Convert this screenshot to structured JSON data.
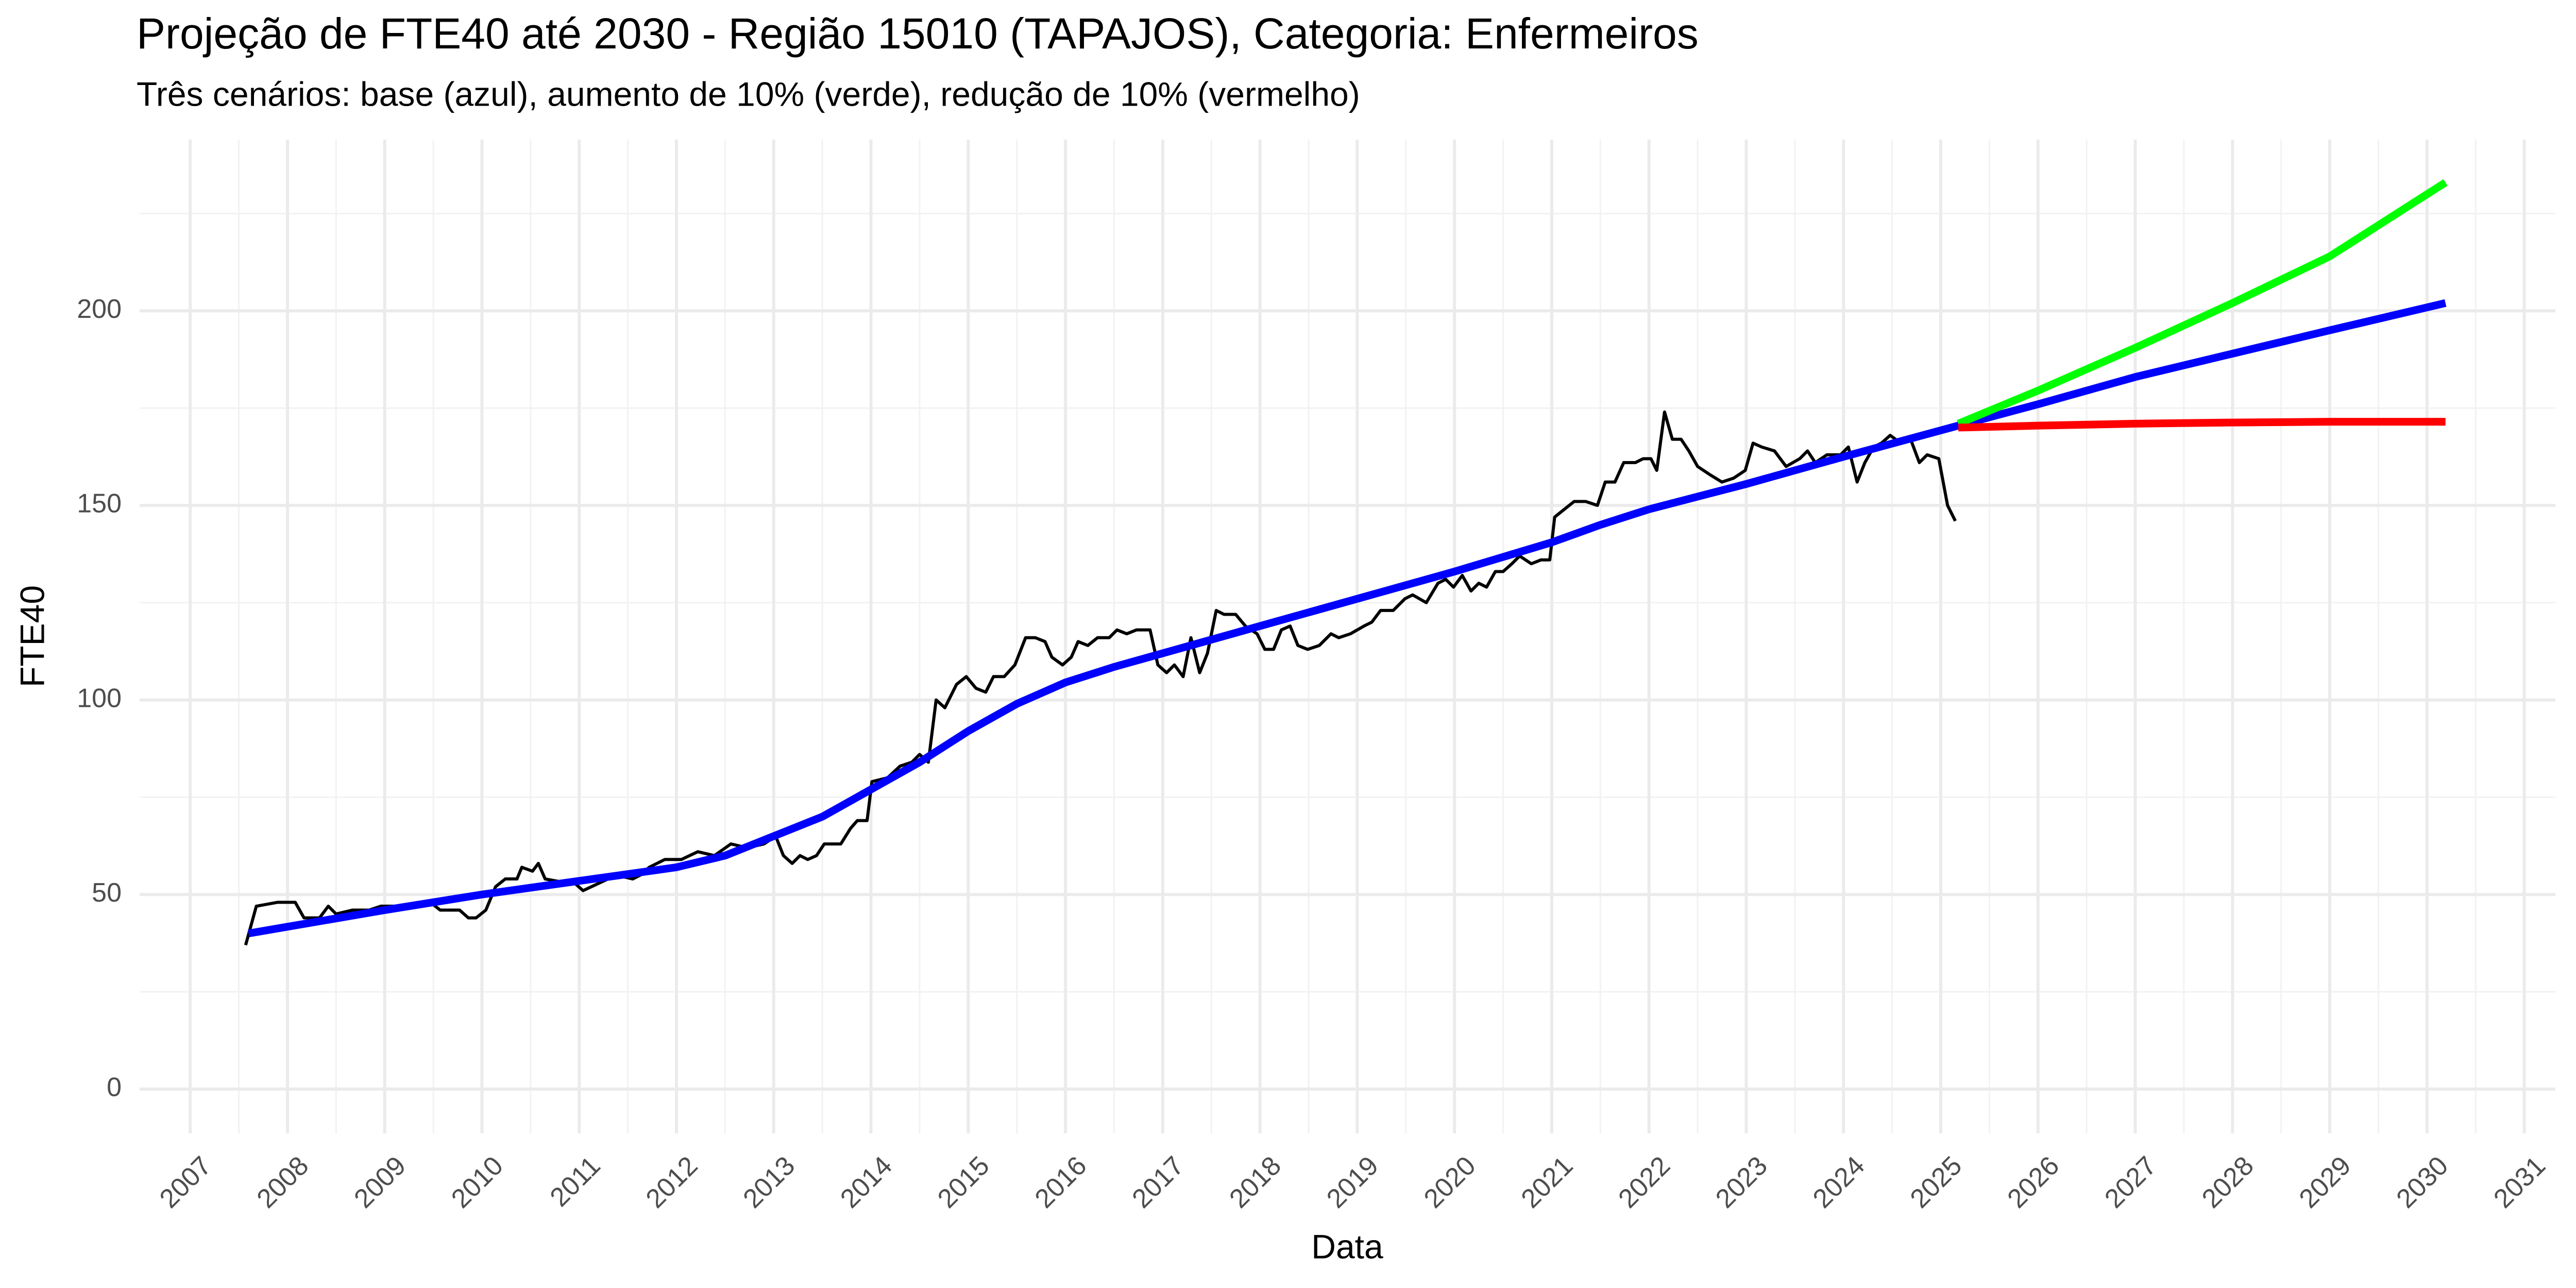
{
  "chart_data": {
    "type": "line",
    "title": "Projeção de FTE40 até 2030 - Região 15010 (TAPAJOS), Categoria: Enfermeiros",
    "subtitle": "Três cenários: base (azul), aumento de 10% (verde), redução de 10% (vermelho)",
    "x_label": "Data",
    "y_label": "FTE40",
    "xlim": [
      2006.48,
      2031.32
    ],
    "xticks": [
      2007,
      2008,
      2009,
      2010,
      2011,
      2012,
      2013,
      2014,
      2015,
      2016,
      2017,
      2018,
      2019,
      2020,
      2021,
      2022,
      2023,
      2024,
      2025,
      2026,
      2027,
      2028,
      2029,
      2030,
      2031
    ],
    "ylim": [
      -11.4,
      244
    ],
    "yticks": [
      0,
      50,
      100,
      150,
      200
    ],
    "grid": true,
    "series": [
      {
        "color": "#000000",
        "x": [
          2007.57,
          2007.68,
          2007.9,
          2008.08,
          2008.17,
          2008.33,
          2008.42,
          2008.5,
          2008.67,
          2008.84,
          2008.96,
          2009.26,
          2009.47,
          2009.57,
          2009.77,
          2009.86,
          2009.94,
          2010.04,
          2010.14,
          2010.24,
          2010.36,
          2010.41,
          2010.52,
          2010.58,
          2010.65,
          2010.87,
          2010.95,
          2011.04,
          2011.21,
          2011.38,
          2011.55,
          2011.63,
          2011.72,
          2011.88,
          2012.05,
          2012.22,
          2012.39,
          2012.56,
          2012.73,
          2012.9,
          2013.02,
          2013.1,
          2013.19,
          2013.27,
          2013.35,
          2013.44,
          2013.52,
          2013.69,
          2013.79,
          2013.86,
          2013.96,
          2014.01,
          2014.17,
          2014.3,
          2014.42,
          2014.5,
          2014.59,
          2014.67,
          2014.76,
          2014.88,
          2014.98,
          2015.08,
          2015.18,
          2015.26,
          2015.37,
          2015.48,
          2015.59,
          2015.69,
          2015.79,
          2015.86,
          2015.97,
          2016.06,
          2016.13,
          2016.23,
          2016.33,
          2016.45,
          2016.53,
          2016.63,
          2016.73,
          2016.87,
          2016.95,
          2017.04,
          2017.12,
          2017.21,
          2017.29,
          2017.38,
          2017.46,
          2017.55,
          2017.63,
          2017.75,
          2017.85,
          2017.97,
          2018.05,
          2018.14,
          2018.22,
          2018.31,
          2018.39,
          2018.49,
          2018.61,
          2018.73,
          2018.81,
          2018.93,
          2019.07,
          2019.15,
          2019.24,
          2019.37,
          2019.49,
          2019.57,
          2019.71,
          2019.83,
          2019.91,
          2019.99,
          2020.08,
          2020.17,
          2020.25,
          2020.33,
          2020.42,
          2020.5,
          2020.59,
          2020.67,
          2020.79,
          2020.89,
          2020.98,
          2021.03,
          2021.13,
          2021.23,
          2021.35,
          2021.47,
          2021.55,
          2021.65,
          2021.74,
          2021.86,
          2021.94,
          2022.02,
          2022.08,
          2022.16,
          2022.24,
          2022.33,
          2022.41,
          2022.5,
          2022.62,
          2022.75,
          2022.87,
          2022.99,
          2023.07,
          2023.16,
          2023.29,
          2023.41,
          2023.55,
          2023.63,
          2023.71,
          2023.83,
          2023.97,
          2024.05,
          2024.14,
          2024.22,
          2024.31,
          2024.39,
          2024.48,
          2024.59,
          2024.69,
          2024.78,
          2024.86,
          2024.98,
          2025.07,
          2025.15
        ],
        "values": [
          37,
          47,
          48,
          48,
          44,
          44,
          47,
          45,
          46,
          46,
          47,
          47,
          48,
          46,
          46,
          44,
          44,
          46,
          52,
          54,
          54,
          57,
          56,
          58,
          54,
          53,
          53,
          51,
          53,
          55,
          54,
          55,
          57,
          59,
          59,
          61,
          60,
          63,
          62,
          63,
          65,
          60,
          58,
          60,
          59,
          60,
          63,
          63,
          67,
          69,
          69,
          79,
          80,
          83,
          84,
          86,
          84,
          100,
          98,
          104,
          106,
          103,
          102,
          106,
          106,
          109,
          116,
          116,
          115,
          111,
          109,
          111,
          115,
          114,
          116,
          116,
          118,
          117,
          118,
          118,
          109,
          107,
          109,
          106,
          116,
          107,
          112,
          123,
          122,
          122,
          119,
          117,
          113,
          113,
          118,
          119,
          114,
          113,
          114,
          117,
          116,
          117,
          119,
          120,
          123,
          123,
          126,
          127,
          125,
          130,
          131,
          129,
          132,
          128,
          130,
          129,
          133,
          133,
          135,
          137,
          135,
          136,
          136,
          147,
          149,
          151,
          151,
          150,
          156,
          156,
          161,
          161,
          162,
          162,
          159,
          174,
          167,
          167,
          164,
          160,
          158,
          156,
          157,
          159,
          166,
          165,
          164,
          160,
          162,
          164,
          161,
          163,
          163,
          165,
          156,
          161,
          165,
          166,
          168,
          166,
          167,
          161,
          163,
          162,
          150,
          146
        ]
      },
      {
        "color": "#0000ff",
        "x": [
          2007.6,
          2009,
          2010,
          2011,
          2012,
          2012.5,
          2013,
          2013.5,
          2014,
          2014.5,
          2015,
          2015.5,
          2016,
          2016.5,
          2017,
          2018,
          2019,
          2020,
          2021,
          2021.5,
          2022,
          2023,
          2024,
          2025.18,
          2026,
          2027,
          2028,
          2029,
          2030.19
        ],
        "values": [
          40,
          46,
          50,
          53.5,
          57,
          60,
          65,
          70,
          77,
          84,
          92,
          99,
          104.5,
          108.5,
          112,
          119,
          126,
          133,
          140.5,
          145,
          149,
          155.5,
          162.5,
          170.5,
          176,
          183,
          189,
          195,
          202
        ]
      },
      {
        "color": "#00ff00",
        "x": [
          2025.18,
          2026,
          2027,
          2028,
          2029,
          2030.19
        ],
        "values": [
          171,
          179.5,
          190.5,
          202,
          214,
          233
        ]
      },
      {
        "color": "#ff0000",
        "x": [
          2025.18,
          2026,
          2027,
          2028,
          2029,
          2030.19
        ],
        "values": [
          170,
          170.5,
          171,
          171.3,
          171.5,
          171.5
        ]
      }
    ]
  }
}
